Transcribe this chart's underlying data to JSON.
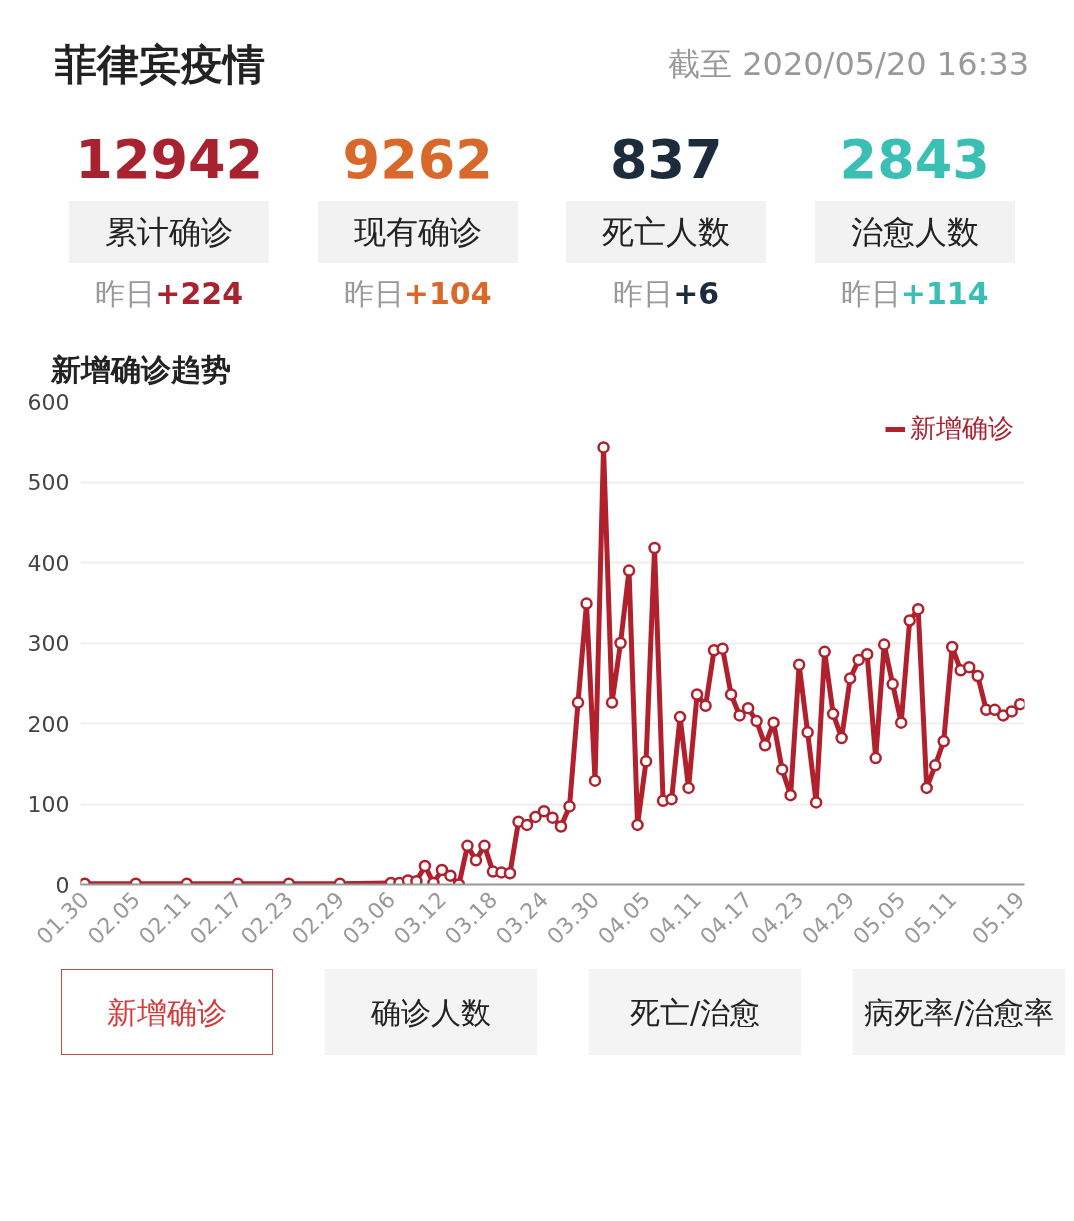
{
  "chart_data": [
    {
      "type": "other",
      "title": "菲律宾疫情",
      "subtitle": "截至 2020/05/20 16:33",
      "annotations": [
        "12942",
        "累计确诊",
        "昨日",
        "+224",
        "9262",
        "现有确诊",
        "昨日",
        "+104",
        "837",
        "死亡人数",
        "昨日",
        "+6",
        "2843",
        "治愈人数",
        "昨日",
        "+114"
      ]
    },
    {
      "type": "line",
      "title": "新增确诊趋势",
      "x": [
        "2020-01-30",
        "2020-02-05",
        "2020-02-11",
        "2020-02-17",
        "2020-02-23",
        "2020-02-29",
        "2020-03-06",
        "2020-03-07",
        "2020-03-08",
        "2020-03-09",
        "2020-03-10",
        "2020-03-11",
        "2020-03-12",
        "2020-03-13",
        "2020-03-14",
        "2020-03-15",
        "2020-03-16",
        "2020-03-17",
        "2020-03-18",
        "2020-03-19",
        "2020-03-20",
        "2020-03-21",
        "2020-03-22",
        "2020-03-23",
        "2020-03-24",
        "2020-03-25",
        "2020-03-26",
        "2020-03-27",
        "2020-03-28",
        "2020-03-29",
        "2020-03-30",
        "2020-03-31",
        "2020-04-01",
        "2020-04-02",
        "2020-04-03",
        "2020-04-04",
        "2020-04-05",
        "2020-04-06",
        "2020-04-07",
        "2020-04-08",
        "2020-04-09",
        "2020-04-10",
        "2020-04-11",
        "2020-04-12",
        "2020-04-13",
        "2020-04-14",
        "2020-04-15",
        "2020-04-16",
        "2020-04-17",
        "2020-04-18",
        "2020-04-19",
        "2020-04-20",
        "2020-04-21",
        "2020-04-22",
        "2020-04-23",
        "2020-04-24",
        "2020-04-25",
        "2020-04-26",
        "2020-04-27",
        "2020-04-28",
        "2020-04-29",
        "2020-04-30",
        "2020-05-01",
        "2020-05-02",
        "2020-05-03",
        "2020-05-04",
        "2020-05-05",
        "2020-05-06",
        "2020-05-07",
        "2020-05-08",
        "2020-05-09",
        "2020-05-10",
        "2020-05-11",
        "2020-05-12",
        "2020-05-13",
        "2020-05-14",
        "2020-05-15",
        "2020-05-16",
        "2020-05-17",
        "2020-05-18",
        "2020-05-19"
      ],
      "series": [
        {
          "name": "新增确诊",
          "color": "#b0202d",
          "values": [
            1,
            1,
            1,
            1,
            1,
            1,
            2,
            2,
            5,
            4,
            23,
            2,
            18,
            11,
            0,
            48,
            30,
            48,
            16,
            15,
            14,
            78,
            74,
            84,
            91,
            83,
            72,
            97,
            226,
            349,
            129,
            543,
            226,
            300,
            390,
            74,
            153,
            418,
            104,
            106,
            208,
            120,
            236,
            222,
            291,
            293,
            236,
            210,
            219,
            203,
            173,
            201,
            143,
            111,
            273,
            189,
            102,
            289,
            212,
            182,
            256,
            279,
            286,
            157,
            298,
            249,
            201,
            328,
            342,
            120,
            148,
            178,
            295,
            266,
            270,
            259,
            217,
            217,
            210,
            215,
            224
          ]
        }
      ],
      "xlim": [
        "2020-01-29T12:00",
        "2020-05-19T12:00"
      ],
      "xticks": [
        {
          "value": "2020-01-30",
          "label": "01.30"
        },
        {
          "value": "2020-02-05",
          "label": "02.05"
        },
        {
          "value": "2020-02-11",
          "label": "02.11"
        },
        {
          "value": "2020-02-17",
          "label": "02.17"
        },
        {
          "value": "2020-02-23",
          "label": "02.23"
        },
        {
          "value": "2020-02-29",
          "label": "02.29"
        },
        {
          "value": "2020-03-06",
          "label": "03.06"
        },
        {
          "value": "2020-03-12",
          "label": "03.12"
        },
        {
          "value": "2020-03-18",
          "label": "03.18"
        },
        {
          "value": "2020-03-24",
          "label": "03.24"
        },
        {
          "value": "2020-03-30",
          "label": "03.30"
        },
        {
          "value": "2020-04-05",
          "label": "04.05"
        },
        {
          "value": "2020-04-11",
          "label": "04.11"
        },
        {
          "value": "2020-04-17",
          "label": "04.17"
        },
        {
          "value": "2020-04-23",
          "label": "04.23"
        },
        {
          "value": "2020-04-29",
          "label": "04.29"
        },
        {
          "value": "2020-05-05",
          "label": "05.05"
        },
        {
          "value": "2020-05-11",
          "label": "05.11"
        },
        {
          "value": "2020-05-19",
          "label": "05.19"
        }
      ],
      "ylim": [
        0,
        600
      ],
      "yticks": [
        0,
        100,
        200,
        300,
        400,
        500,
        600
      ],
      "grid": "y",
      "legend": "top right",
      "marker": "circle"
    },
    {
      "type": "other",
      "annotations": [
        "新增确诊",
        "确诊人数",
        "死亡/治愈",
        "病死率/治愈率"
      ]
    }
  ]
}
